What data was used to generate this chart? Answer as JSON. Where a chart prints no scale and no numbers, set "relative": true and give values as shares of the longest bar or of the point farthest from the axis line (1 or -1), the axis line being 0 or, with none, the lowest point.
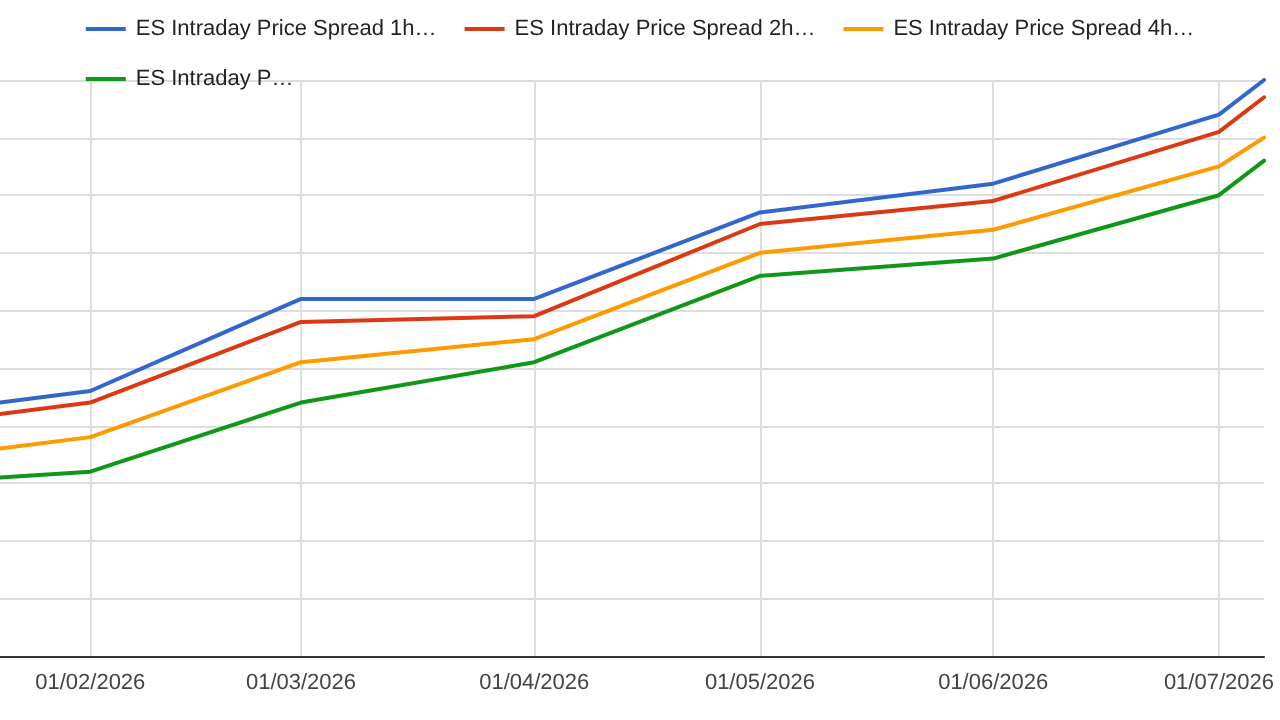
{
  "chart_data": {
    "type": "line",
    "relative": true,
    "x": [
      "2026-01-20",
      "2026-02-01",
      "2026-03-01",
      "2026-04-01",
      "2026-05-01",
      "2026-06-01",
      "2026-07-01",
      "2026-07-07"
    ],
    "xlim": [
      "2026-01-20",
      "2026-07-07"
    ],
    "xticks": [
      {
        "value": "2026-02-01",
        "label": "01/02/2026"
      },
      {
        "value": "2026-03-01",
        "label": "01/03/2026"
      },
      {
        "value": "2026-04-01",
        "label": "01/04/2026"
      },
      {
        "value": "2026-05-01",
        "label": "01/05/2026"
      },
      {
        "value": "2026-06-01",
        "label": "01/06/2026"
      },
      {
        "value": "2026-07-01",
        "label": "01/07/2026"
      }
    ],
    "series": [
      {
        "name": "ES Intraday Price Spread 1h…",
        "color": "#3366cc",
        "values": [
          0.44,
          0.46,
          0.62,
          0.62,
          0.77,
          0.82,
          0.94,
          1
        ]
      },
      {
        "name": "ES Intraday Price Spread 2h…",
        "color": "#dc3912",
        "values": [
          0.42,
          0.44,
          0.58,
          0.59,
          0.75,
          0.79,
          0.91,
          0.97
        ]
      },
      {
        "name": "ES Intraday Price Spread 4h…",
        "color": "#ff9900",
        "values": [
          0.36,
          0.38,
          0.51,
          0.55,
          0.7,
          0.74,
          0.85,
          0.9
        ]
      },
      {
        "name": "ES Intraday P…",
        "color": "#109618",
        "values": [
          0.31,
          0.32,
          0.44,
          0.51,
          0.66,
          0.69,
          0.8,
          0.86
        ]
      }
    ],
    "grid": true,
    "legend": "top",
    "marker": "none",
    "line_style": "solid"
  }
}
